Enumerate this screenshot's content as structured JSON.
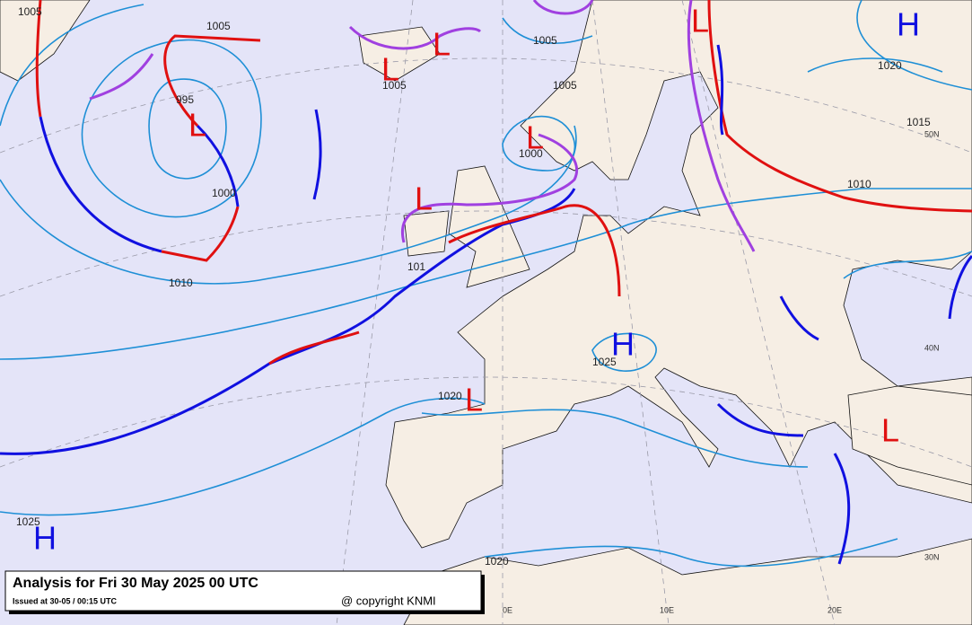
{
  "title": "Analysis for Fri 30 May 2025 00 UTC",
  "issued": "Issued at 30-05 / 00:15 UTC",
  "copyright": "@ copyright KNMI",
  "isobar_labels": [
    "1005",
    "995",
    "1000",
    "1010",
    "1005",
    "1005",
    "1005",
    "1005",
    "1000",
    "1020",
    "1015",
    "1010",
    "101",
    "1025",
    "1020",
    "1025",
    "1020"
  ],
  "pressure_centres": [
    "H",
    "L",
    "L",
    "L",
    "L",
    "L",
    "H",
    "L",
    "L",
    "H",
    "L"
  ],
  "grid_labels": [
    "50N",
    "40N",
    "30N",
    "0E",
    "10E",
    "20E"
  ]
}
